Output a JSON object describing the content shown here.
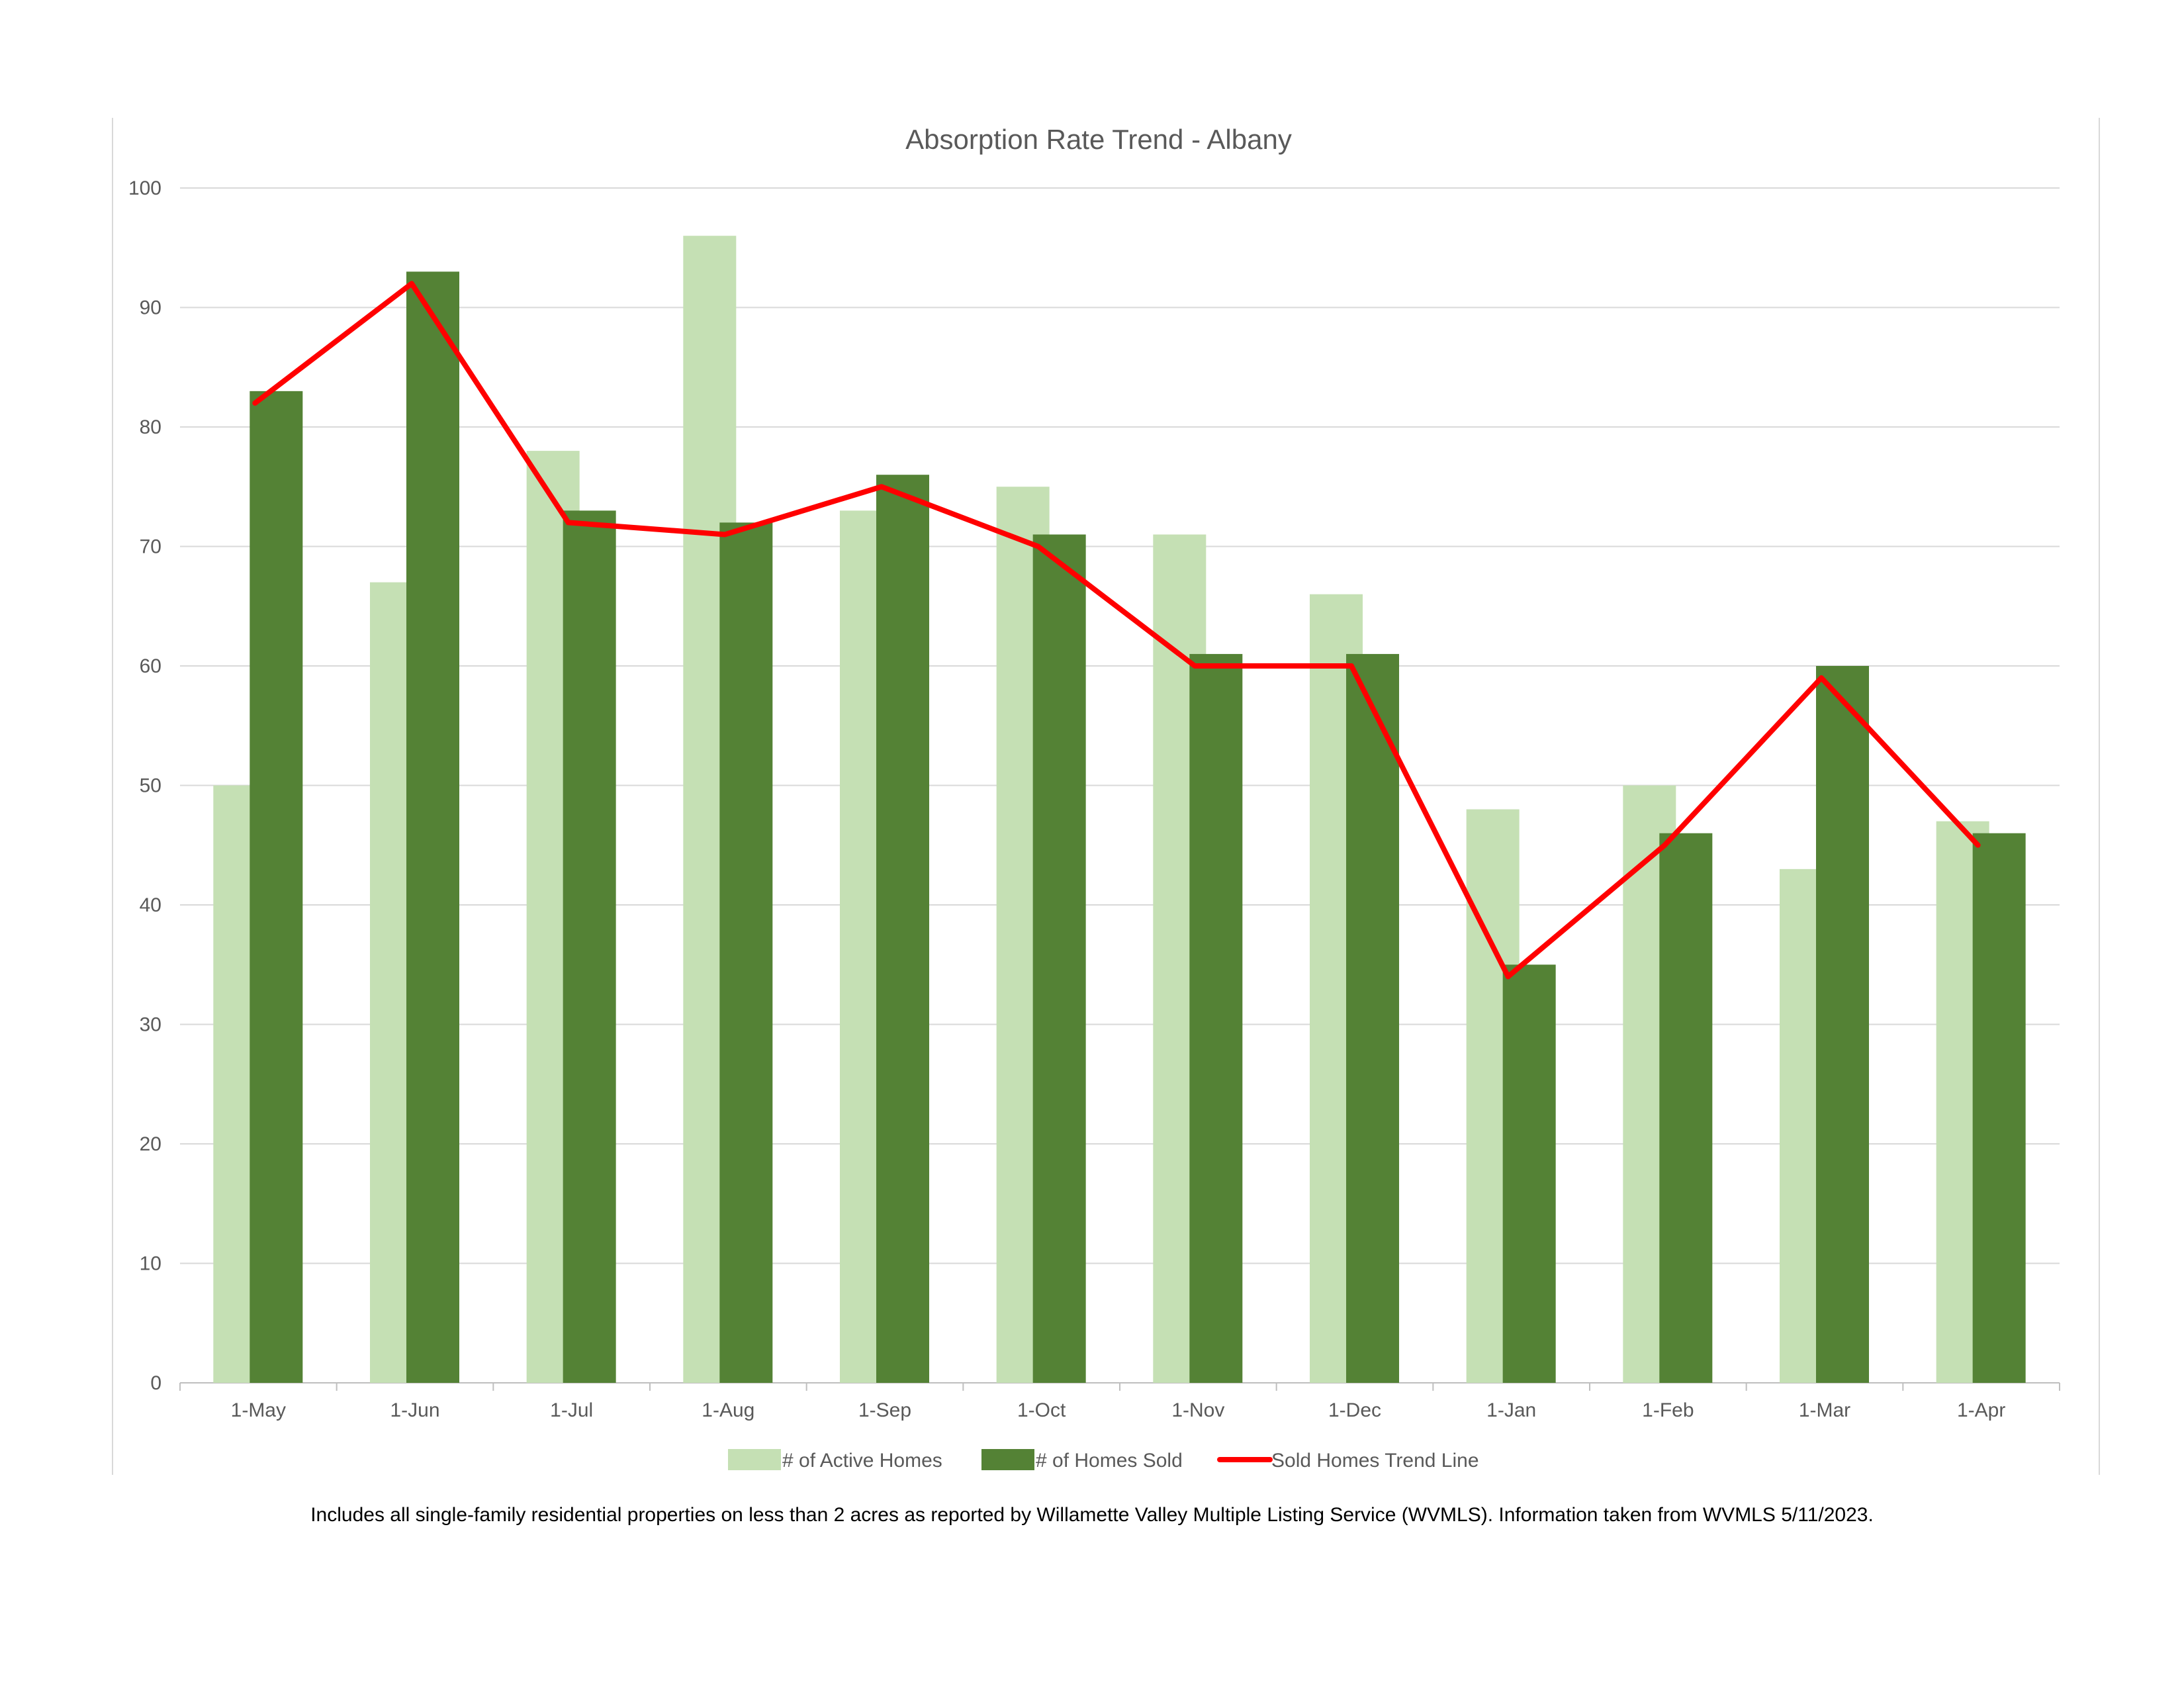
{
  "chart_data": {
    "type": "bar",
    "title": "Absorption Rate Trend - Albany",
    "categories": [
      "1-May",
      "1-Jun",
      "1-Jul",
      "1-Aug",
      "1-Sep",
      "1-Oct",
      "1-Nov",
      "1-Dec",
      "1-Jan",
      "1-Feb",
      "1-Mar",
      "1-Apr"
    ],
    "series": [
      {
        "name": "# of Active Homes",
        "type": "bar",
        "color": "#c5e0b4",
        "values": [
          50,
          67,
          78,
          96,
          73,
          75,
          71,
          66,
          48,
          50,
          43,
          47
        ]
      },
      {
        "name": "# of Homes Sold",
        "type": "bar",
        "color": "#548235",
        "values": [
          83,
          93,
          73,
          72,
          76,
          71,
          61,
          61,
          35,
          46,
          60,
          46
        ]
      },
      {
        "name": "Sold Homes Trend Line",
        "type": "line",
        "color": "#ff0000",
        "values": [
          82,
          92,
          72,
          71,
          75,
          70,
          60,
          60,
          34,
          45,
          59,
          45
        ]
      }
    ],
    "ylim": [
      0,
      100
    ],
    "yticks": [
      0,
      10,
      20,
      30,
      40,
      50,
      60,
      70,
      80,
      90,
      100
    ],
    "grid": true,
    "legend": "bottom"
  },
  "footnote": "Includes all single-family residential properties on less than 2 acres as reported by Willamette Valley Multiple Listing Service (WVMLS). Information taken from WVMLS 5/11/2023."
}
